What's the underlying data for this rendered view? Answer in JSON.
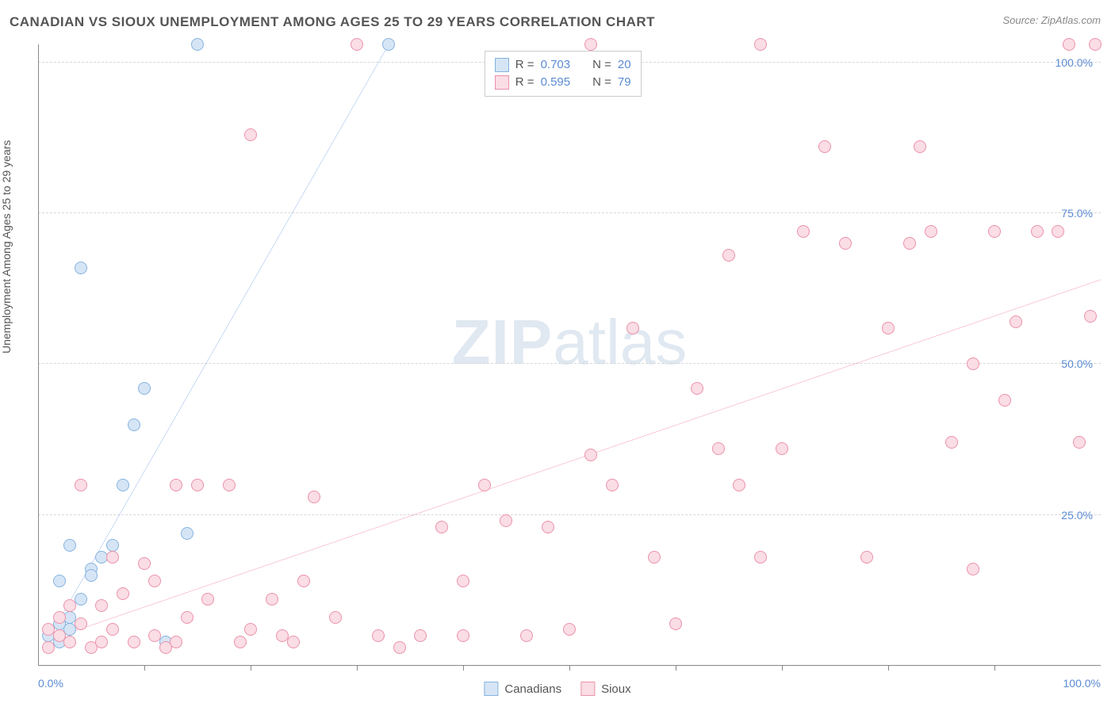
{
  "chart": {
    "type": "scatter",
    "title": "CANADIAN VS SIOUX UNEMPLOYMENT AMONG AGES 25 TO 29 YEARS CORRELATION CHART",
    "source": "Source: ZipAtlas.com",
    "ylabel": "Unemployment Among Ages 25 to 29 years",
    "watermark_a": "ZIP",
    "watermark_b": "atlas",
    "xlim": [
      0,
      100
    ],
    "ylim": [
      0,
      103
    ],
    "xtick_labels": [
      "0.0%",
      "100.0%"
    ],
    "xtick_positions": [
      0,
      100
    ],
    "xtick_minor": [
      10,
      20,
      30,
      40,
      50,
      60,
      70,
      80,
      90
    ],
    "ytick_labels": [
      "25.0%",
      "50.0%",
      "75.0%",
      "100.0%"
    ],
    "ytick_positions": [
      25,
      50,
      75,
      100
    ],
    "grid_color": "#d8d8d8",
    "axis_color": "#888888",
    "background_color": "#ffffff",
    "tick_label_color": "#5b8bd4",
    "title_color": "#555555",
    "title_fontsize": 17,
    "label_fontsize": 14,
    "marker_radius": 8,
    "marker_stroke_width": 1.5,
    "trendline_width": 2,
    "watermark_color": "#cdd9e8",
    "watermark_fontsize": 80,
    "series": [
      {
        "name": "Canadians",
        "fill": "#d6e5f5",
        "stroke": "#86b3e0",
        "trend_color": "#3b78d8",
        "trend_start": [
          0.5,
          3
        ],
        "trend_end": [
          33,
          103
        ],
        "R": "0.703",
        "N": "20",
        "points": [
          [
            1,
            5
          ],
          [
            2,
            7
          ],
          [
            3,
            8
          ],
          [
            4,
            11
          ],
          [
            2,
            14
          ],
          [
            5,
            16
          ],
          [
            6,
            18
          ],
          [
            7,
            20
          ],
          [
            3,
            20
          ],
          [
            5,
            15
          ],
          [
            8,
            30
          ],
          [
            9,
            40
          ],
          [
            10,
            46
          ],
          [
            4,
            66
          ],
          [
            14,
            22
          ],
          [
            12,
            4
          ],
          [
            15,
            103
          ],
          [
            33,
            103
          ],
          [
            2,
            4
          ],
          [
            3,
            6
          ]
        ]
      },
      {
        "name": "Sioux",
        "fill": "#fadde5",
        "stroke": "#eb92ab",
        "trend_color": "#e84a7a",
        "trend_start": [
          0.5,
          4
        ],
        "trend_end": [
          100,
          64
        ],
        "R": "0.595",
        "N": "79",
        "points": [
          [
            1,
            3
          ],
          [
            2,
            5
          ],
          [
            3,
            4
          ],
          [
            4,
            7
          ],
          [
            5,
            3
          ],
          [
            6,
            10
          ],
          [
            7,
            6
          ],
          [
            8,
            12
          ],
          [
            9,
            4
          ],
          [
            10,
            17
          ],
          [
            11,
            5
          ],
          [
            12,
            3
          ],
          [
            13,
            4
          ],
          [
            14,
            8
          ],
          [
            15,
            30
          ],
          [
            16,
            11
          ],
          [
            18,
            30
          ],
          [
            19,
            4
          ],
          [
            20,
            6
          ],
          [
            22,
            11
          ],
          [
            23,
            5
          ],
          [
            25,
            14
          ],
          [
            26,
            28
          ],
          [
            28,
            8
          ],
          [
            30,
            103
          ],
          [
            34,
            3
          ],
          [
            36,
            5
          ],
          [
            38,
            23
          ],
          [
            40,
            5
          ],
          [
            42,
            30
          ],
          [
            44,
            24
          ],
          [
            46,
            5
          ],
          [
            48,
            23
          ],
          [
            50,
            6
          ],
          [
            52,
            35
          ],
          [
            54,
            30
          ],
          [
            56,
            56
          ],
          [
            58,
            18
          ],
          [
            60,
            7
          ],
          [
            62,
            46
          ],
          [
            64,
            36
          ],
          [
            66,
            30
          ],
          [
            68,
            18
          ],
          [
            70,
            36
          ],
          [
            72,
            72
          ],
          [
            74,
            86
          ],
          [
            76,
            70
          ],
          [
            78,
            18
          ],
          [
            80,
            56
          ],
          [
            82,
            70
          ],
          [
            83,
            86
          ],
          [
            84,
            72
          ],
          [
            86,
            37
          ],
          [
            88,
            50
          ],
          [
            90,
            72
          ],
          [
            91,
            44
          ],
          [
            92,
            57
          ],
          [
            94,
            72
          ],
          [
            96,
            72
          ],
          [
            98,
            37
          ],
          [
            99,
            58
          ],
          [
            99.5,
            103
          ],
          [
            97,
            103
          ],
          [
            68,
            103
          ],
          [
            52,
            103
          ],
          [
            20,
            88
          ],
          [
            4,
            30
          ],
          [
            7,
            18
          ],
          [
            3,
            10
          ],
          [
            2,
            8
          ],
          [
            1,
            6
          ],
          [
            6,
            4
          ],
          [
            11,
            14
          ],
          [
            13,
            30
          ],
          [
            24,
            4
          ],
          [
            32,
            5
          ],
          [
            40,
            14
          ],
          [
            65,
            68
          ],
          [
            88,
            16
          ]
        ]
      }
    ],
    "stats_legend": {
      "position_top_pct": 1,
      "position_left_pct": 42,
      "R_label": "R =",
      "N_label": "N ="
    },
    "bottom_legend": {
      "items": [
        "Canadians",
        "Sioux"
      ]
    }
  }
}
